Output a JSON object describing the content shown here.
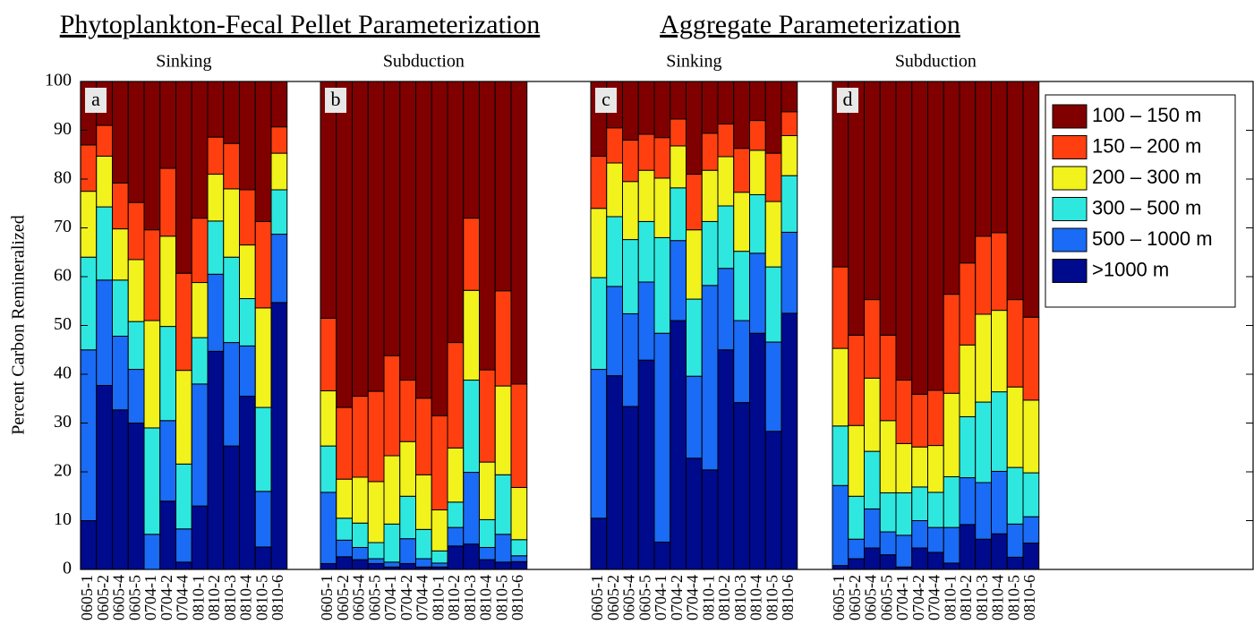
{
  "headings": [
    "Phytoplankton-Fecal Pellet Parameterization",
    "Aggregate Parameterization"
  ],
  "chart_data": [
    {
      "type": "bar",
      "stacked": true,
      "title": "Sinking",
      "label": "a",
      "ylabel": "Percent Carbon Remineralized",
      "ylim": [
        0,
        100
      ],
      "yticks": [
        0,
        10,
        20,
        30,
        40,
        50,
        60,
        70,
        80,
        90,
        100
      ],
      "legend": "upper right",
      "categories": [
        "0605-1",
        "0605-2",
        "0605-4",
        "0605-5",
        "0704-1",
        "0704-2",
        "0704-4",
        "0810-1",
        "0810-2",
        "0810-3",
        "0810-4",
        "0810-5",
        "0810-6"
      ],
      "series": [
        {
          "name": "100 – 150 m",
          "color": "#800000",
          "values": [
            13,
            9,
            20.8,
            24.8,
            30.4,
            17.8,
            39.3,
            28,
            11.4,
            12.7,
            22.2,
            28.7,
            9.3
          ]
        },
        {
          "name": "150 – 200 m",
          "color": "#ff3f0f",
          "values": [
            9.5,
            6.3,
            9.4,
            11.7,
            18.6,
            13.9,
            19.9,
            13.2,
            7.6,
            9.3,
            11.3,
            17.7,
            5.4
          ]
        },
        {
          "name": "200 – 300 m",
          "color": "#f2f21c",
          "values": [
            13.5,
            10.4,
            10.5,
            12.7,
            22,
            18.5,
            19.2,
            11.3,
            9.6,
            14,
            11,
            20.4,
            7.5
          ]
        },
        {
          "name": "300 – 500 m",
          "color": "#2ee8e0",
          "values": [
            19,
            15,
            11.5,
            9.8,
            21.8,
            19.3,
            13.3,
            9.5,
            10.9,
            17.5,
            9.7,
            17.2,
            9.1
          ]
        },
        {
          "name": "500 – 1000 m",
          "color": "#1a6bf5",
          "values": [
            35,
            21.6,
            15.1,
            11,
            7.2,
            16.5,
            6.8,
            25,
            15.8,
            21.2,
            10.3,
            11.4,
            14
          ]
        },
        {
          "name": ">1000 m",
          "color": "#000a8c",
          "values": [
            10,
            37.7,
            32.7,
            30,
            0,
            14,
            1.5,
            13,
            44.7,
            25.3,
            35.5,
            4.6,
            54.7
          ]
        }
      ]
    },
    {
      "type": "bar",
      "stacked": true,
      "title": "Subduction",
      "label": "b",
      "categories": [
        "0605-1",
        "0605-2",
        "0605-4",
        "0605-5",
        "0704-1",
        "0704-2",
        "0704-4",
        "0810-1",
        "0810-2",
        "0810-3",
        "0810-4",
        "0810-5",
        "0810-6"
      ],
      "series": [
        {
          "name": "100 – 150 m",
          "color": "#800000",
          "values": [
            48.5,
            66.8,
            64.5,
            63.5,
            56.2,
            61.2,
            64.9,
            68.5,
            53.5,
            28,
            59.1,
            42.9,
            62
          ]
        },
        {
          "name": "150 – 200 m",
          "color": "#ff3f0f",
          "values": [
            14.9,
            14.7,
            16.6,
            18.5,
            20.5,
            12.6,
            15.7,
            19.3,
            21.6,
            14.8,
            18.9,
            19.5,
            21.2
          ]
        },
        {
          "name": "200 – 300 m",
          "color": "#f2f21c",
          "values": [
            11.3,
            8,
            9.4,
            12.5,
            14,
            11.2,
            11.2,
            8.4,
            11.1,
            18.4,
            11.8,
            18.2,
            10.7
          ]
        },
        {
          "name": "300 – 500 m",
          "color": "#2ee8e0",
          "values": [
            9.5,
            4.5,
            5,
            3.3,
            7.8,
            8.7,
            6,
            2.5,
            5.2,
            18.9,
            5.7,
            12.2,
            3.3
          ]
        },
        {
          "name": "500 – 1000 m",
          "color": "#1a6bf5",
          "values": [
            14.6,
            3.4,
            2.5,
            1,
            1,
            5.1,
            1.7,
            0.8,
            3.8,
            14.7,
            2.5,
            5.7,
            1.2
          ]
        },
        {
          "name": ">1000 m",
          "color": "#000a8c",
          "values": [
            1.2,
            2.6,
            2,
            1.2,
            0.5,
            1.2,
            0.5,
            0.5,
            4.8,
            5.2,
            2,
            1.5,
            1.6
          ]
        }
      ]
    },
    {
      "type": "bar",
      "stacked": true,
      "title": "Sinking",
      "label": "c",
      "categories": [
        "0605-1",
        "0605-2",
        "0605-4",
        "0605-5",
        "0704-1",
        "0704-2",
        "0704-4",
        "0810-1",
        "0810-2",
        "0810-3",
        "0810-4",
        "0810-5",
        "0810-6"
      ],
      "series": [
        {
          "name": "100 – 150 m",
          "color": "#800000",
          "values": [
            15.3,
            9.5,
            12,
            10.8,
            11.5,
            7.7,
            19,
            10.6,
            8.7,
            13.7,
            8,
            14.7,
            6.2
          ]
        },
        {
          "name": "150 – 200 m",
          "color": "#ff3f0f",
          "values": [
            10.7,
            7.2,
            8.5,
            7.4,
            8.3,
            5.5,
            11.4,
            7.6,
            6.7,
            9,
            6.1,
            9.9,
            4.9
          ]
        },
        {
          "name": "200 – 300 m",
          "color": "#f2f21c",
          "values": [
            14.2,
            11,
            11.9,
            10.5,
            12.2,
            8.6,
            14.2,
            10.5,
            10.1,
            12.1,
            9.1,
            13.4,
            8.2
          ]
        },
        {
          "name": "300 – 500 m",
          "color": "#2ee8e0",
          "values": [
            18.8,
            14.3,
            15.2,
            12.4,
            19.6,
            10.8,
            15.8,
            13.1,
            12.8,
            14.2,
            12,
            15.4,
            11.6
          ]
        },
        {
          "name": "500 – 1000 m",
          "color": "#1a6bf5",
          "values": [
            30.5,
            18.3,
            19,
            16,
            42.8,
            16.4,
            16.8,
            37.8,
            16.7,
            16.8,
            16.4,
            18.3,
            16.6
          ]
        },
        {
          "name": ">1000 m",
          "color": "#000a8c",
          "values": [
            10.5,
            39.7,
            33.4,
            42.9,
            5.6,
            51,
            22.8,
            20.4,
            45,
            34.2,
            48.4,
            28.3,
            52.5
          ]
        }
      ]
    },
    {
      "type": "bar",
      "stacked": true,
      "title": "Subduction",
      "label": "d",
      "categories": [
        "0605-1",
        "0605-2",
        "0605-4",
        "0605-5",
        "0704-1",
        "0704-2",
        "0704-4",
        "0810-1",
        "0810-2",
        "0810-3",
        "0810-4",
        "0810-5",
        "0810-6"
      ],
      "series": [
        {
          "name": "100 – 150 m",
          "color": "#800000",
          "values": [
            38,
            52,
            44.7,
            52,
            61.2,
            64.1,
            63.3,
            43.6,
            37.2,
            31.7,
            31,
            44.7,
            48.3
          ]
        },
        {
          "name": "150 – 200 m",
          "color": "#ff3f0f",
          "values": [
            16.7,
            18.5,
            16.1,
            17.5,
            13,
            10.8,
            11.3,
            20.3,
            16.8,
            16,
            15.9,
            17.9,
            17
          ]
        },
        {
          "name": "200 – 300 m",
          "color": "#f2f21c",
          "values": [
            15.9,
            14.5,
            15,
            14.8,
            10.1,
            8.2,
            9.6,
            17.1,
            14.7,
            18,
            16.7,
            16.5,
            14.9
          ]
        },
        {
          "name": "300 – 500 m",
          "color": "#2ee8e0",
          "values": [
            12.2,
            8.8,
            11.8,
            8,
            8.7,
            6.9,
            7.2,
            10.4,
            12.5,
            16.5,
            16.3,
            11.6,
            9
          ]
        },
        {
          "name": "500 – 1000 m",
          "color": "#1a6bf5",
          "values": [
            16.4,
            4,
            8,
            4.7,
            6.5,
            5.6,
            5.1,
            7.3,
            9.6,
            11.6,
            12.8,
            6.8,
            5.4
          ]
        },
        {
          "name": ">1000 m",
          "color": "#000a8c",
          "values": [
            0.8,
            2.2,
            4.4,
            3,
            0.5,
            4.4,
            3.5,
            1.3,
            9.2,
            6.2,
            7.3,
            2.5,
            5.4
          ]
        }
      ]
    }
  ]
}
